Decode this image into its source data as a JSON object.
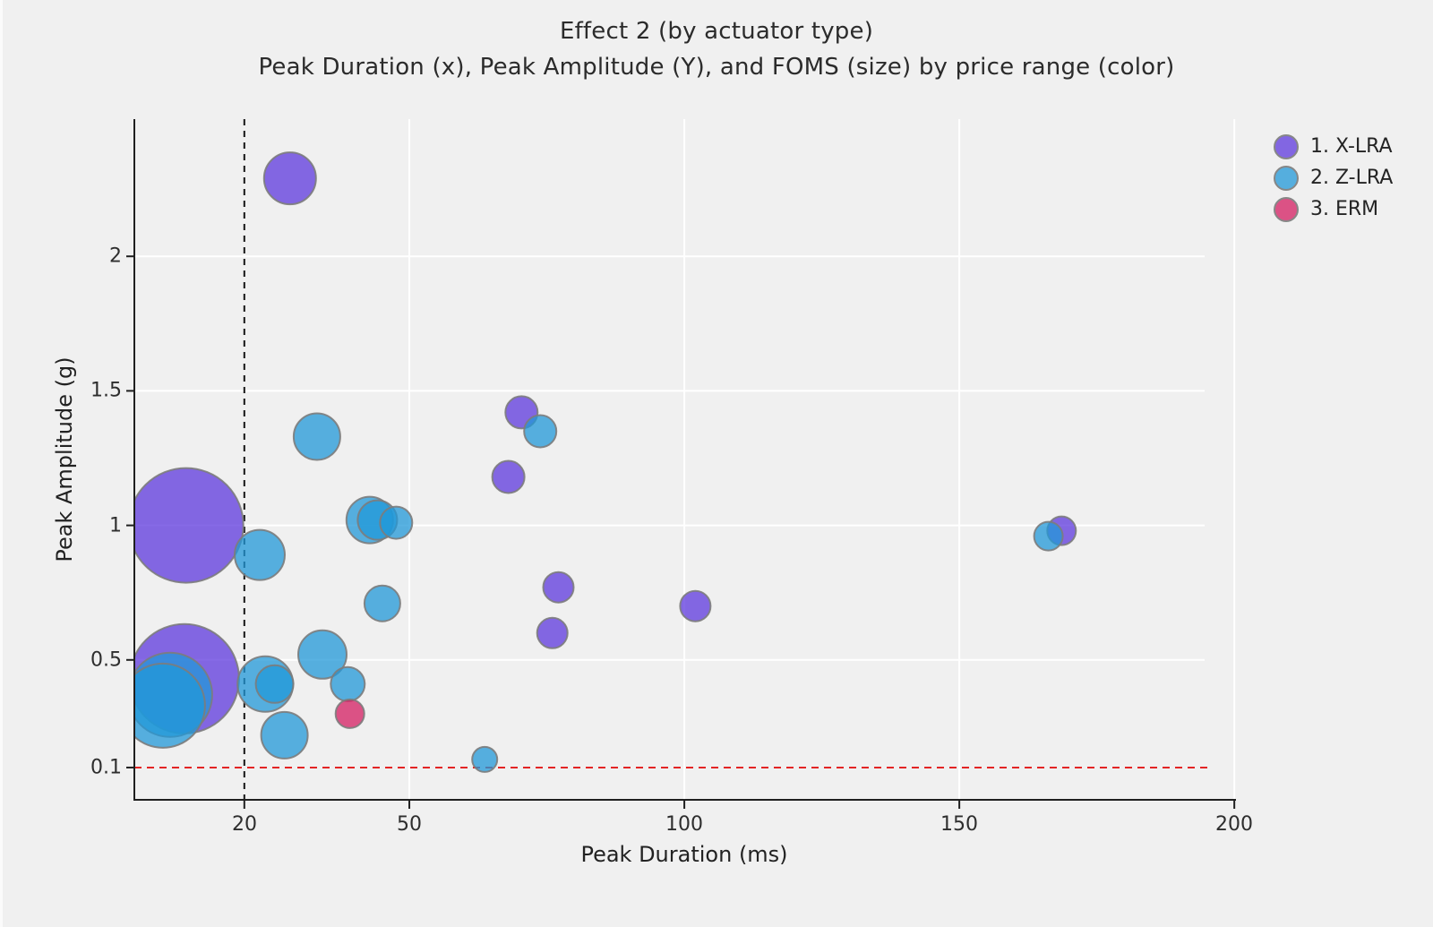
{
  "page": {
    "background_color": "#f0f0f0"
  },
  "chart_data": {
    "type": "scatter",
    "subtype": "bubble",
    "title": "Effect 2 (by actuator type)",
    "subtitle": "Peak Duration (x), Peak Amplitude (Y), and FOMS (size) by price range (color)",
    "xlabel": "Peak Duration (ms)",
    "ylabel": "Peak Amplitude (g)",
    "x_ticks": [
      20,
      50,
      100,
      150,
      200
    ],
    "x_tick_labels": [
      "20",
      "50",
      "100",
      "150",
      "200"
    ],
    "y_ticks": [
      0.1,
      0.5,
      1,
      1.5,
      2
    ],
    "y_tick_labels": [
      "0.1",
      "0.5",
      "1",
      "1.5",
      "2"
    ],
    "xlim": [
      0,
      200.3
    ],
    "ylim": [
      -0.02,
      2.51
    ],
    "grid": true,
    "grid_color": "#ffffff",
    "size_encodes": "FOMS",
    "color_encodes": "price range",
    "legend_position": "top-right",
    "reference_lines": {
      "vertical": {
        "x": 20,
        "style": "dashed",
        "color": "#161616"
      },
      "horizontal": {
        "y": 0.1,
        "style": "dashed",
        "color": "#e32424"
      }
    },
    "style": {
      "marker_fill_opacity": 0.75,
      "marker_stroke": "#7c7c7c",
      "marker_stroke_width": 2,
      "axis_color": "#1f1f1f",
      "tick_label_color": "#2e2e2e"
    },
    "series": [
      {
        "name": "1. X-LRA",
        "color": "#5D38DD",
        "rendered_color": "#8266E2",
        "points": [
          {
            "x": 28.3,
            "y": 2.29,
            "r": 29
          },
          {
            "x": 9.4,
            "y": 1.0,
            "r": 64
          },
          {
            "x": 9.1,
            "y": 0.43,
            "r": 61
          },
          {
            "x": 70.4,
            "y": 1.42,
            "r": 18
          },
          {
            "x": 68.0,
            "y": 1.18,
            "r": 18
          },
          {
            "x": 77.1,
            "y": 0.77,
            "r": 17
          },
          {
            "x": 76.0,
            "y": 0.6,
            "r": 17
          },
          {
            "x": 102.0,
            "y": 0.7,
            "r": 17
          },
          {
            "x": 168.6,
            "y": 0.98,
            "r": 16
          }
        ]
      },
      {
        "name": "2. Z-LRA",
        "color": "#2198D8",
        "rendered_color": "#55AEDE",
        "points": [
          {
            "x": 33.2,
            "y": 1.33,
            "r": 26
          },
          {
            "x": 22.8,
            "y": 0.89,
            "r": 28
          },
          {
            "x": 6.5,
            "y": 0.37,
            "r": 47
          },
          {
            "x": 5.2,
            "y": 0.33,
            "r": 47
          },
          {
            "x": 42.8,
            "y": 1.02,
            "r": 26
          },
          {
            "x": 44.2,
            "y": 1.02,
            "r": 22
          },
          {
            "x": 47.6,
            "y": 1.01,
            "r": 18
          },
          {
            "x": 45.1,
            "y": 0.71,
            "r": 20
          },
          {
            "x": 34.2,
            "y": 0.52,
            "r": 27
          },
          {
            "x": 23.8,
            "y": 0.41,
            "r": 31
          },
          {
            "x": 25.5,
            "y": 0.41,
            "r": 21
          },
          {
            "x": 38.8,
            "y": 0.41,
            "r": 19
          },
          {
            "x": 27.3,
            "y": 0.22,
            "r": 26
          },
          {
            "x": 63.7,
            "y": 0.13,
            "r": 14
          },
          {
            "x": 166.2,
            "y": 0.96,
            "r": 16
          },
          {
            "x": 73.8,
            "y": 1.35,
            "r": 18
          }
        ]
      },
      {
        "name": "3. ERM",
        "color": "#D41D61",
        "rendered_color": "#DB5285",
        "points": [
          {
            "x": 39.2,
            "y": 0.3,
            "r": 16
          }
        ]
      }
    ]
  }
}
